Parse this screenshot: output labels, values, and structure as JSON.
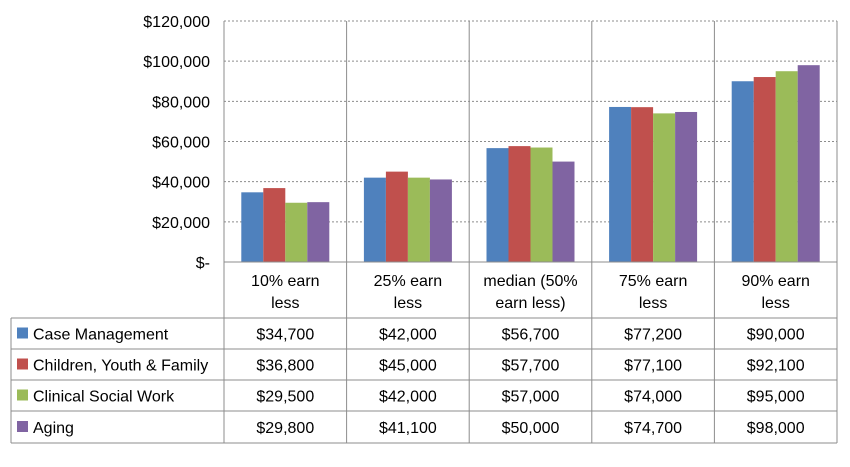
{
  "chart_data": {
    "type": "bar",
    "title": "",
    "xlabel": "",
    "ylabel": "",
    "ylim": [
      0,
      120000
    ],
    "yticks": [
      {
        "value": 0,
        "label": "$-"
      },
      {
        "value": 20000,
        "label": "$20,000"
      },
      {
        "value": 40000,
        "label": "$40,000"
      },
      {
        "value": 60000,
        "label": "$60,000"
      },
      {
        "value": 80000,
        "label": "$80,000"
      },
      {
        "value": 100000,
        "label": "$100,000"
      },
      {
        "value": 120000,
        "label": "$120,000"
      }
    ],
    "grid": true,
    "legend": "data-table-left",
    "categories": [
      [
        "10% earn",
        "less"
      ],
      [
        "25% earn",
        "less"
      ],
      [
        "median (50%",
        "earn less)"
      ],
      [
        "75% earn",
        "less"
      ],
      [
        "90% earn",
        "less"
      ]
    ],
    "series": [
      {
        "name": "Case Management",
        "color": "#4f81bd",
        "values": [
          34700,
          42000,
          56700,
          77200,
          90000
        ],
        "labels": [
          "$34,700",
          "$42,000",
          "$56,700",
          "$77,200",
          "$90,000"
        ]
      },
      {
        "name": "Children, Youth & Family",
        "color": "#c0504d",
        "values": [
          36800,
          45000,
          57700,
          77100,
          92100
        ],
        "labels": [
          "$36,800",
          "$45,000",
          "$57,700",
          "$77,100",
          "$92,100"
        ]
      },
      {
        "name": "Clinical Social Work",
        "color": "#9bbb59",
        "values": [
          29500,
          42000,
          57000,
          74000,
          95000
        ],
        "labels": [
          "$29,500",
          "$42,000",
          "$57,000",
          "$74,000",
          "$95,000"
        ]
      },
      {
        "name": "Aging",
        "color": "#8064a2",
        "values": [
          29800,
          41100,
          50000,
          74700,
          98000
        ],
        "labels": [
          "$29,800",
          "$41,100",
          "$50,000",
          "$74,700",
          "$98,000"
        ]
      }
    ]
  }
}
